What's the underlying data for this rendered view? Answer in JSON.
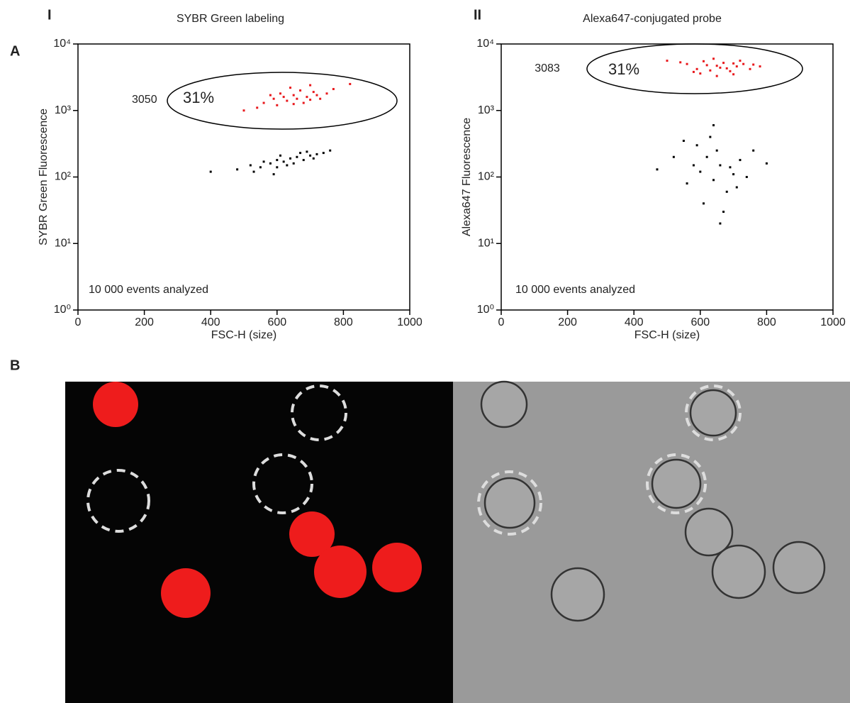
{
  "panel_labels": [
    "A",
    "B"
  ],
  "chart_data": [
    {
      "type": "scatter",
      "panel": "I",
      "title": "SYBR Green labeling",
      "x_label": "FSC-H  (size)",
      "y_label": "SYBR Green Fluorescence",
      "xlim": [
        0,
        1000
      ],
      "xticks": [
        0,
        200,
        400,
        600,
        800,
        1000
      ],
      "ylim": [
        1,
        10000
      ],
      "y_log": true,
      "yticks": [
        {
          "value": 1,
          "label": "10⁰"
        },
        {
          "value": 10,
          "label": "10¹"
        },
        {
          "value": 100,
          "label": "10²"
        },
        {
          "value": 1000,
          "label": "10³"
        },
        {
          "value": 10000,
          "label": "10⁴"
        }
      ],
      "annotations": [
        "3050",
        "31%",
        "10 000 events analyzed"
      ],
      "series": [
        {
          "color": "#e8181c",
          "x": [
            560,
            590,
            610,
            630,
            650,
            670,
            690,
            710,
            730,
            600,
            640,
            680,
            700,
            720,
            660,
            620,
            750,
            540,
            580,
            770,
            650,
            700,
            500,
            820
          ],
          "values": [
            1300,
            1500,
            1800,
            1400,
            1700,
            2000,
            1600,
            1900,
            1500,
            1200,
            2200,
            1300,
            2400,
            1700,
            1500,
            1600,
            1800,
            1100,
            1700,
            2100,
            1250,
            1450,
            1000,
            2500
          ]
        },
        {
          "color": "#000000",
          "x": [
            480,
            520,
            550,
            580,
            600,
            620,
            640,
            660,
            680,
            700,
            720,
            740,
            600,
            560,
            650,
            690,
            610,
            530,
            760,
            400,
            630,
            670,
            710,
            590
          ],
          "values": [
            130,
            150,
            140,
            160,
            180,
            170,
            190,
            200,
            180,
            210,
            220,
            230,
            140,
            170,
            160,
            240,
            210,
            120,
            250,
            120,
            150,
            230,
            190,
            110
          ]
        }
      ]
    },
    {
      "type": "scatter",
      "panel": "II",
      "title": "Alexa647-conjugated probe",
      "x_label": "FSC-H (size)",
      "y_label": "Alexa647 Fluorescence",
      "xlim": [
        0,
        1000
      ],
      "xticks": [
        0,
        200,
        400,
        600,
        800,
        1000
      ],
      "ylim": [
        1,
        10000
      ],
      "y_log": true,
      "yticks": [
        {
          "value": 1,
          "label": "10⁰"
        },
        {
          "value": 10,
          "label": "10¹"
        },
        {
          "value": 100,
          "label": "10²"
        },
        {
          "value": 1000,
          "label": "10³"
        },
        {
          "value": 10000,
          "label": "10⁴"
        }
      ],
      "annotations": [
        "3083",
        "31%",
        "10 000 events analyzed"
      ],
      "series": [
        {
          "color": "#e8181c",
          "x": [
            560,
            590,
            610,
            630,
            650,
            670,
            690,
            710,
            730,
            600,
            640,
            680,
            700,
            720,
            660,
            620,
            750,
            540,
            580,
            760,
            650,
            700,
            500,
            780
          ],
          "values": [
            5000,
            4200,
            5500,
            4000,
            4700,
            5200,
            3900,
            4600,
            5000,
            3600,
            6000,
            4300,
            3500,
            5600,
            4400,
            4800,
            4200,
            5300,
            3800,
            4900,
            3300,
            5100,
            5600,
            4600
          ]
        },
        {
          "color": "#000000",
          "x": [
            600,
            620,
            640,
            660,
            680,
            590,
            700,
            720,
            560,
            610,
            650,
            670,
            630,
            690,
            580,
            740,
            520,
            760,
            470,
            660,
            640,
            710,
            550,
            800
          ],
          "values": [
            120,
            200,
            90,
            150,
            60,
            300,
            110,
            180,
            80,
            40,
            250,
            30,
            400,
            140,
            150,
            100,
            200,
            250,
            130,
            20,
            600,
            70,
            350,
            160
          ]
        }
      ]
    }
  ]
}
